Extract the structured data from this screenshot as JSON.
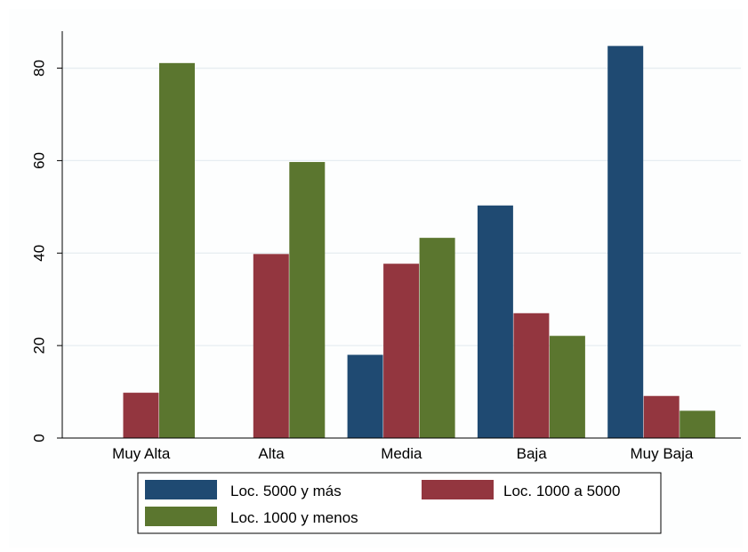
{
  "chart_data": {
    "type": "bar",
    "title": "",
    "xlabel": "",
    "ylabel": "",
    "ylim": [
      0,
      88
    ],
    "yticks": [
      0,
      20,
      40,
      60,
      80
    ],
    "ytick_labels": [
      "0",
      "20",
      "40",
      "60",
      "80"
    ],
    "grid": true,
    "legend_position": "bottom",
    "categories": [
      "Muy Alta",
      "Alta",
      "Media",
      "Baja",
      "Muy Baja"
    ],
    "series": [
      {
        "name": "Loc. 5000 y más",
        "color": "#1f4a72",
        "values": [
          0,
          0,
          18,
          50.3,
          84.8
        ]
      },
      {
        "name": "Loc. 1000 a 5000",
        "color": "#93363f",
        "values": [
          9.8,
          39.8,
          37.7,
          27,
          9.1
        ]
      },
      {
        "name": "Loc. 1000 y menos",
        "color": "#5b762f",
        "values": [
          81.1,
          59.7,
          43.3,
          22.1,
          5.9
        ]
      }
    ]
  }
}
